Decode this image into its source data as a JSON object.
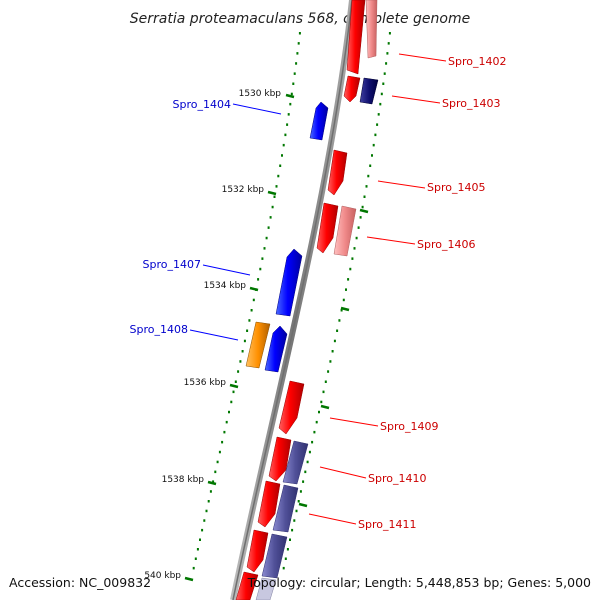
{
  "header": {
    "title": "Serratia proteamaculans 568, complete genome"
  },
  "footer": {
    "accession": "Accession: NC_009832",
    "topology": "Topology: circular; Length: 5,448,853 bp; Genes: 5,000"
  },
  "colors": {
    "forward_strand": "#ff0000",
    "reverse_strand": "#0000ff",
    "label_forward": "#cc0000",
    "label_reverse": "#0000cc",
    "tick": "#007700",
    "backbone": "#888888"
  },
  "scale": {
    "ticks": [
      {
        "label": "1530 kbp"
      },
      {
        "label": "1532 kbp"
      },
      {
        "label": "1534 kbp"
      },
      {
        "label": "1536 kbp"
      },
      {
        "label": "1538 kbp"
      },
      {
        "label": "540 kbp"
      }
    ]
  },
  "genes": [
    {
      "label": "Spro_1402",
      "strand": "forward"
    },
    {
      "label": "Spro_1403",
      "strand": "forward"
    },
    {
      "label": "Spro_1404",
      "strand": "reverse"
    },
    {
      "label": "Spro_1405",
      "strand": "forward"
    },
    {
      "label": "Spro_1406",
      "strand": "forward"
    },
    {
      "label": "Spro_1407",
      "strand": "reverse"
    },
    {
      "label": "Spro_1408",
      "strand": "reverse"
    },
    {
      "label": "Spro_1409",
      "strand": "forward"
    },
    {
      "label": "Spro_1410",
      "strand": "forward"
    },
    {
      "label": "Spro_1411",
      "strand": "forward"
    }
  ]
}
